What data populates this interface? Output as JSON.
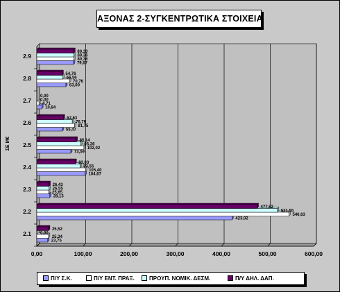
{
  "chart_data": {
    "type": "bar",
    "orientation": "horizontal",
    "title": "ΑΞΟΝΑΣ 2-ΣΥΓΚΕΝΤΡΩΤΙΚΑ ΣΤΟΙΧΕΙΑ",
    "ylabel": "ΣΕ Μ€",
    "xlabel": "",
    "xlim": [
      0,
      600
    ],
    "xticks": [
      "0,00",
      "100,00",
      "200,00",
      "300,00",
      "400,00",
      "500,00",
      "600,00"
    ],
    "grid": "vertical",
    "legend_position": "bottom",
    "categories": [
      "2.1",
      "2.2",
      "2.3",
      "2.4",
      "2.5",
      "2.6",
      "2.7",
      "2.8",
      "2.9"
    ],
    "series": [
      {
        "name": "Π/Υ Σ.Κ.",
        "color": "#9999ff",
        "values": [
          23.75,
          423.02,
          28.13,
          104.67,
          73.59,
          55.47,
          10.84,
          63.0,
          79.67
        ],
        "labels": [
          "23,75",
          "423,02",
          "28,13",
          "104,67",
          "73,59",
          "55,47",
          "10,84",
          "63,00",
          "79,67"
        ]
      },
      {
        "name": "Π/Υ ΕΝΤ. ΠΡΑΞ.",
        "color": "#ffffff",
        "values": [
          25.34,
          546.63,
          25.65,
          105.4,
          102.02,
          81.75,
          4.71,
          70.76,
          80.36
        ],
        "labels": [
          "25,34",
          "546,63",
          "25,65",
          "105,40",
          "102,02",
          "81,75",
          "4,71",
          "70,76",
          "80,36"
        ]
      },
      {
        "name": "ΠΡΟΥΠ. ΝΟΜΙΚ. ΔΕΣΜ.",
        "color": "#ccffff",
        "values": [
          0.0,
          521.55,
          26.55,
          93.55,
          95.36,
          76.79,
          0.0,
          56.56,
          80.36
        ],
        "labels": [
          "0,00",
          "521,55",
          "26,55",
          "93,55",
          "95,36",
          "76,79",
          "0,00",
          "56,56",
          "80,36"
        ]
      },
      {
        "name": "Π/Υ ΔΗΛ. ΔΑΠ.",
        "color": "#660066",
        "values": [
          25.52,
          477.52,
          26.43,
          83.03,
          85.14,
          57.53,
          0.0,
          54.76,
          80.3
        ],
        "labels": [
          "25,52",
          "477,52",
          "26,43",
          "83,03",
          "85,14",
          "57,53",
          "0,00",
          "54,76",
          "80,30"
        ]
      }
    ]
  }
}
